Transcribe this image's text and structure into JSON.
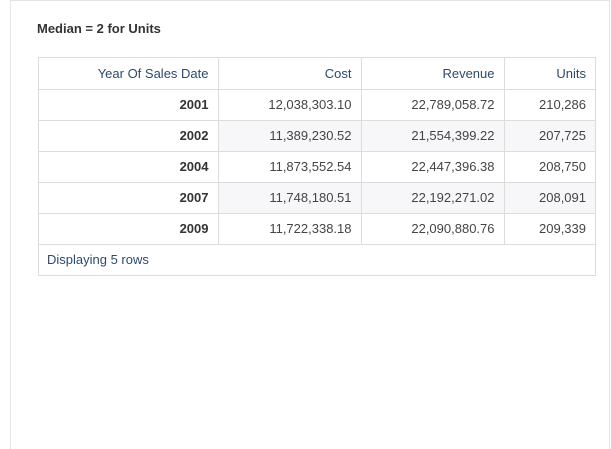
{
  "title": "Median = 2 for Units",
  "table": {
    "headers": [
      "Year Of Sales Date",
      "Cost",
      "Revenue",
      "Units"
    ],
    "rows": [
      [
        "2001",
        "12,038,303.10",
        "22,789,058.72",
        "210,286"
      ],
      [
        "2002",
        "11,389,230.52",
        "21,554,399.22",
        "207,725"
      ],
      [
        "2004",
        "11,873,552.54",
        "22,447,396.38",
        "208,750"
      ],
      [
        "2007",
        "11,748,180.51",
        "22,192,271.02",
        "208,091"
      ],
      [
        "2009",
        "11,722,338.18",
        "22,090,880.76",
        "209,339"
      ]
    ],
    "footer": "Displaying 5 rows"
  }
}
